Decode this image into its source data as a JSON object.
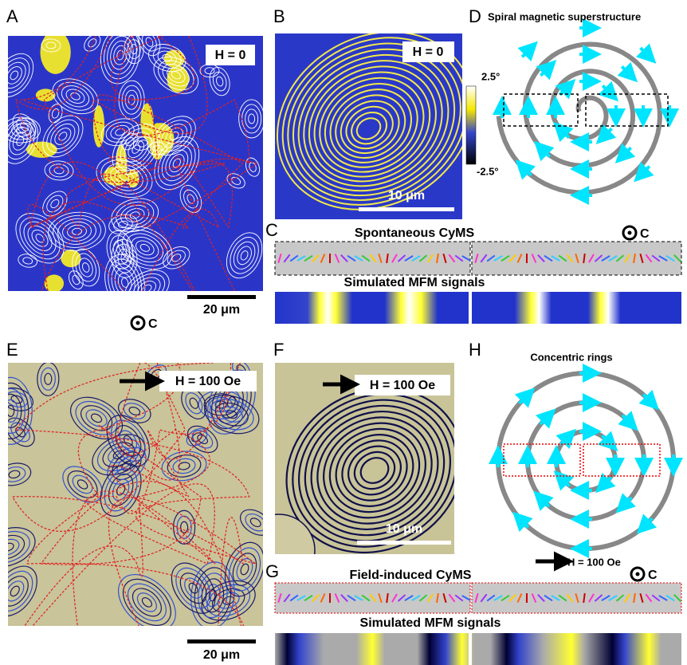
{
  "panels": {
    "A": {
      "letter": "A",
      "field": "H = 0",
      "scale": "20 μm",
      "axis": "C"
    },
    "B": {
      "letter": "B",
      "field": "H = 0",
      "scale": "10 μm",
      "colorbar_max": "2.5°",
      "colorbar_min": "-2.5°"
    },
    "C": {
      "letter": "C",
      "title": "Spontaneous CyMS",
      "axis": "C",
      "subtitle": "Simulated MFM signals"
    },
    "D": {
      "letter": "D",
      "title": "Spiral magnetic superstructure"
    },
    "E": {
      "letter": "E",
      "field": "H = 100 Oe",
      "scale": "20 μm"
    },
    "F": {
      "letter": "F",
      "field": "H = 100 Oe",
      "scale": "10 μm"
    },
    "G": {
      "letter": "G",
      "title": "Field-induced CyMS",
      "axis": "C",
      "subtitle": "Simulated MFM signals"
    },
    "H": {
      "letter": "H",
      "title": "Concentric rings",
      "field": "H = 100 Oe"
    }
  }
}
